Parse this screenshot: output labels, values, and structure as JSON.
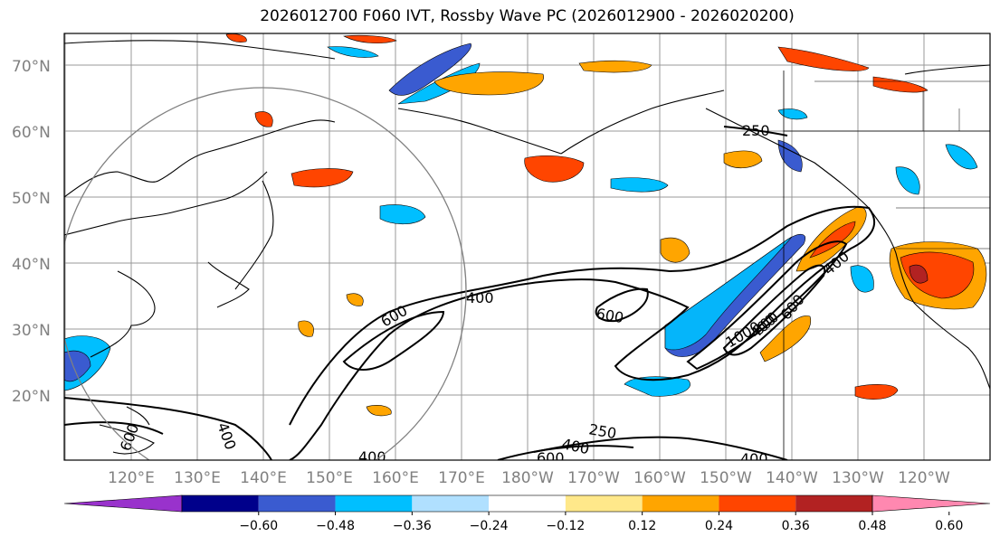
{
  "title": "2026012700 F060 IVT, Rossby Wave PC (2026012900 - 2026020200)",
  "lat_labels": [
    "70°N",
    "60°N",
    "50°N",
    "40°N",
    "30°N",
    "20°N"
  ],
  "lon_labels": [
    "120°E",
    "130°E",
    "140°E",
    "150°E",
    "160°E",
    "170°E",
    "180°W",
    "170°W",
    "160°W",
    "150°W",
    "140°W",
    "130°W",
    "120°W"
  ],
  "contour_labels": [
    "250",
    "400",
    "600",
    "400",
    "600",
    "400",
    "600",
    "1000",
    "800",
    "250",
    "400",
    "600",
    "400",
    "400",
    "400",
    "600"
  ],
  "colorbar": {
    "colors": [
      "#9932cc",
      "#00008b",
      "#3a5bd0",
      "#00bfff",
      "#b0e0ff",
      "#ffffff",
      "#ffe88a",
      "#ffa500",
      "#ff4500",
      "#b22222",
      "#ff88b0"
    ],
    "ticks": [
      "−0.60",
      "−0.48",
      "−0.36",
      "−0.24",
      "−0.12",
      "0.12",
      "0.24",
      "0.36",
      "0.48",
      "0.60"
    ]
  },
  "legend_colors": {
    "ivt_contour": "#000000",
    "coast": "#000000",
    "grid": "#999999",
    "circle": "#808080"
  }
}
